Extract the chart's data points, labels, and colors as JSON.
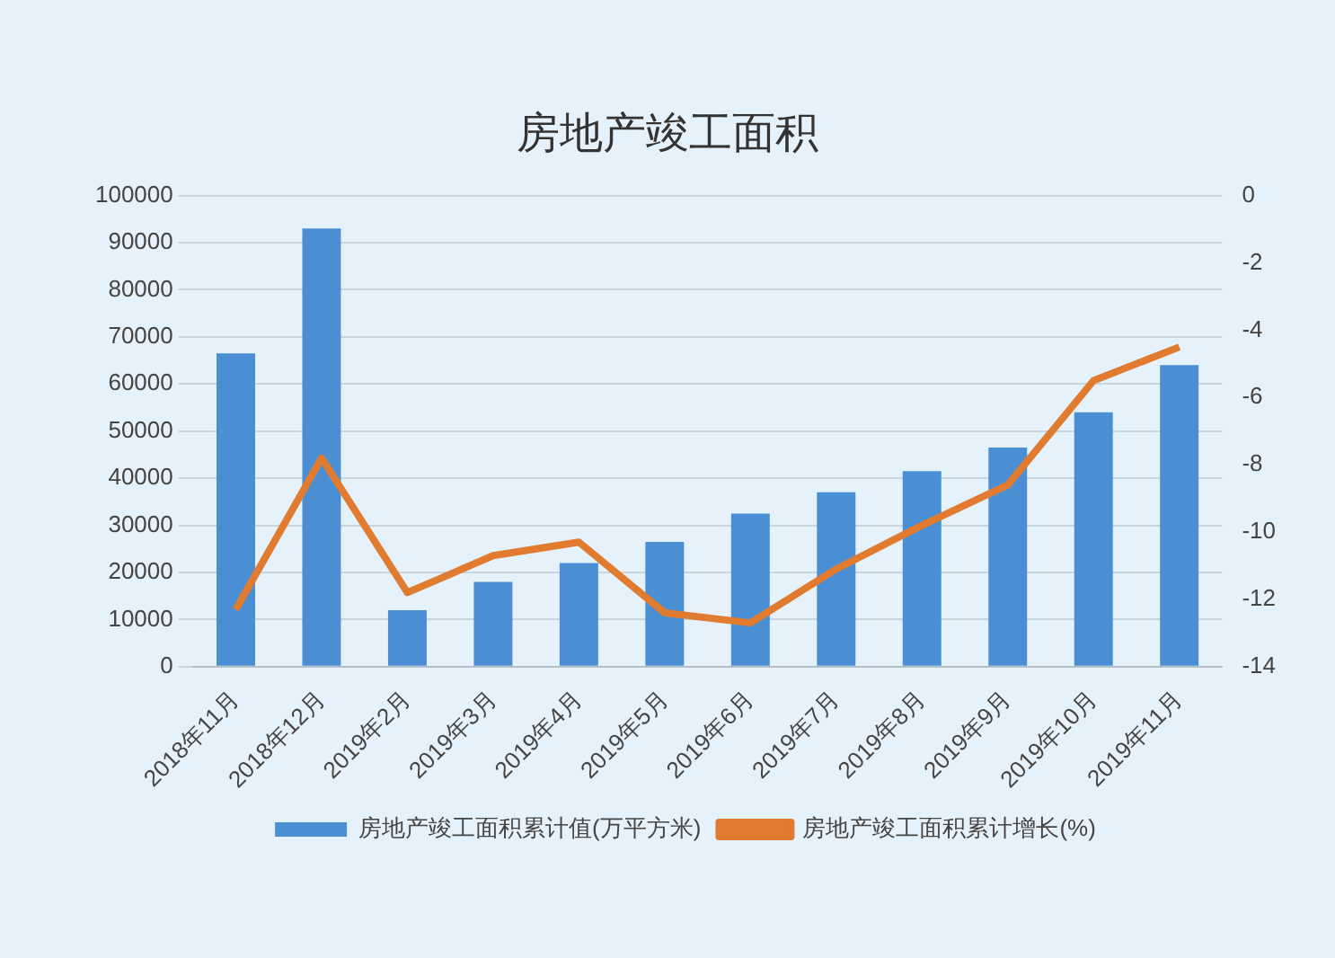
{
  "chart_data": {
    "type": "bar",
    "title": "房地产竣工面积",
    "categories": [
      "2018年11月",
      "2018年12月",
      "2019年2月",
      "2019年3月",
      "2019年4月",
      "2019年5月",
      "2019年6月",
      "2019年7月",
      "2019年8月",
      "2019年9月",
      "2019年10月",
      "2019年11月"
    ],
    "series": [
      {
        "name": "房地产竣工面积累计值(万平方米)",
        "color": "#4a8fd4",
        "values": [
          66500,
          93000,
          12000,
          18000,
          22000,
          26500,
          32500,
          37000,
          41500,
          46500,
          54000,
          64000
        ]
      },
      {
        "name": "房地产竣工面积累计增长(%)",
        "type": "line",
        "axis": "y2",
        "color": "#e07b30",
        "values": [
          -12.3,
          -7.8,
          -11.8,
          -10.7,
          -10.3,
          -12.4,
          -12.7,
          -11.1,
          -9.8,
          -8.6,
          -5.5,
          -4.5
        ]
      }
    ],
    "ylim": [
      0,
      100000
    ],
    "yticks": [
      0,
      10000,
      20000,
      30000,
      40000,
      50000,
      60000,
      70000,
      80000,
      90000,
      100000
    ],
    "y2lim": [
      -14,
      0
    ],
    "y2ticks": [
      -14,
      -12,
      -10,
      -8,
      -6,
      -4,
      -2,
      0
    ],
    "grid": "y",
    "legend": "bottom",
    "marker": "none"
  }
}
